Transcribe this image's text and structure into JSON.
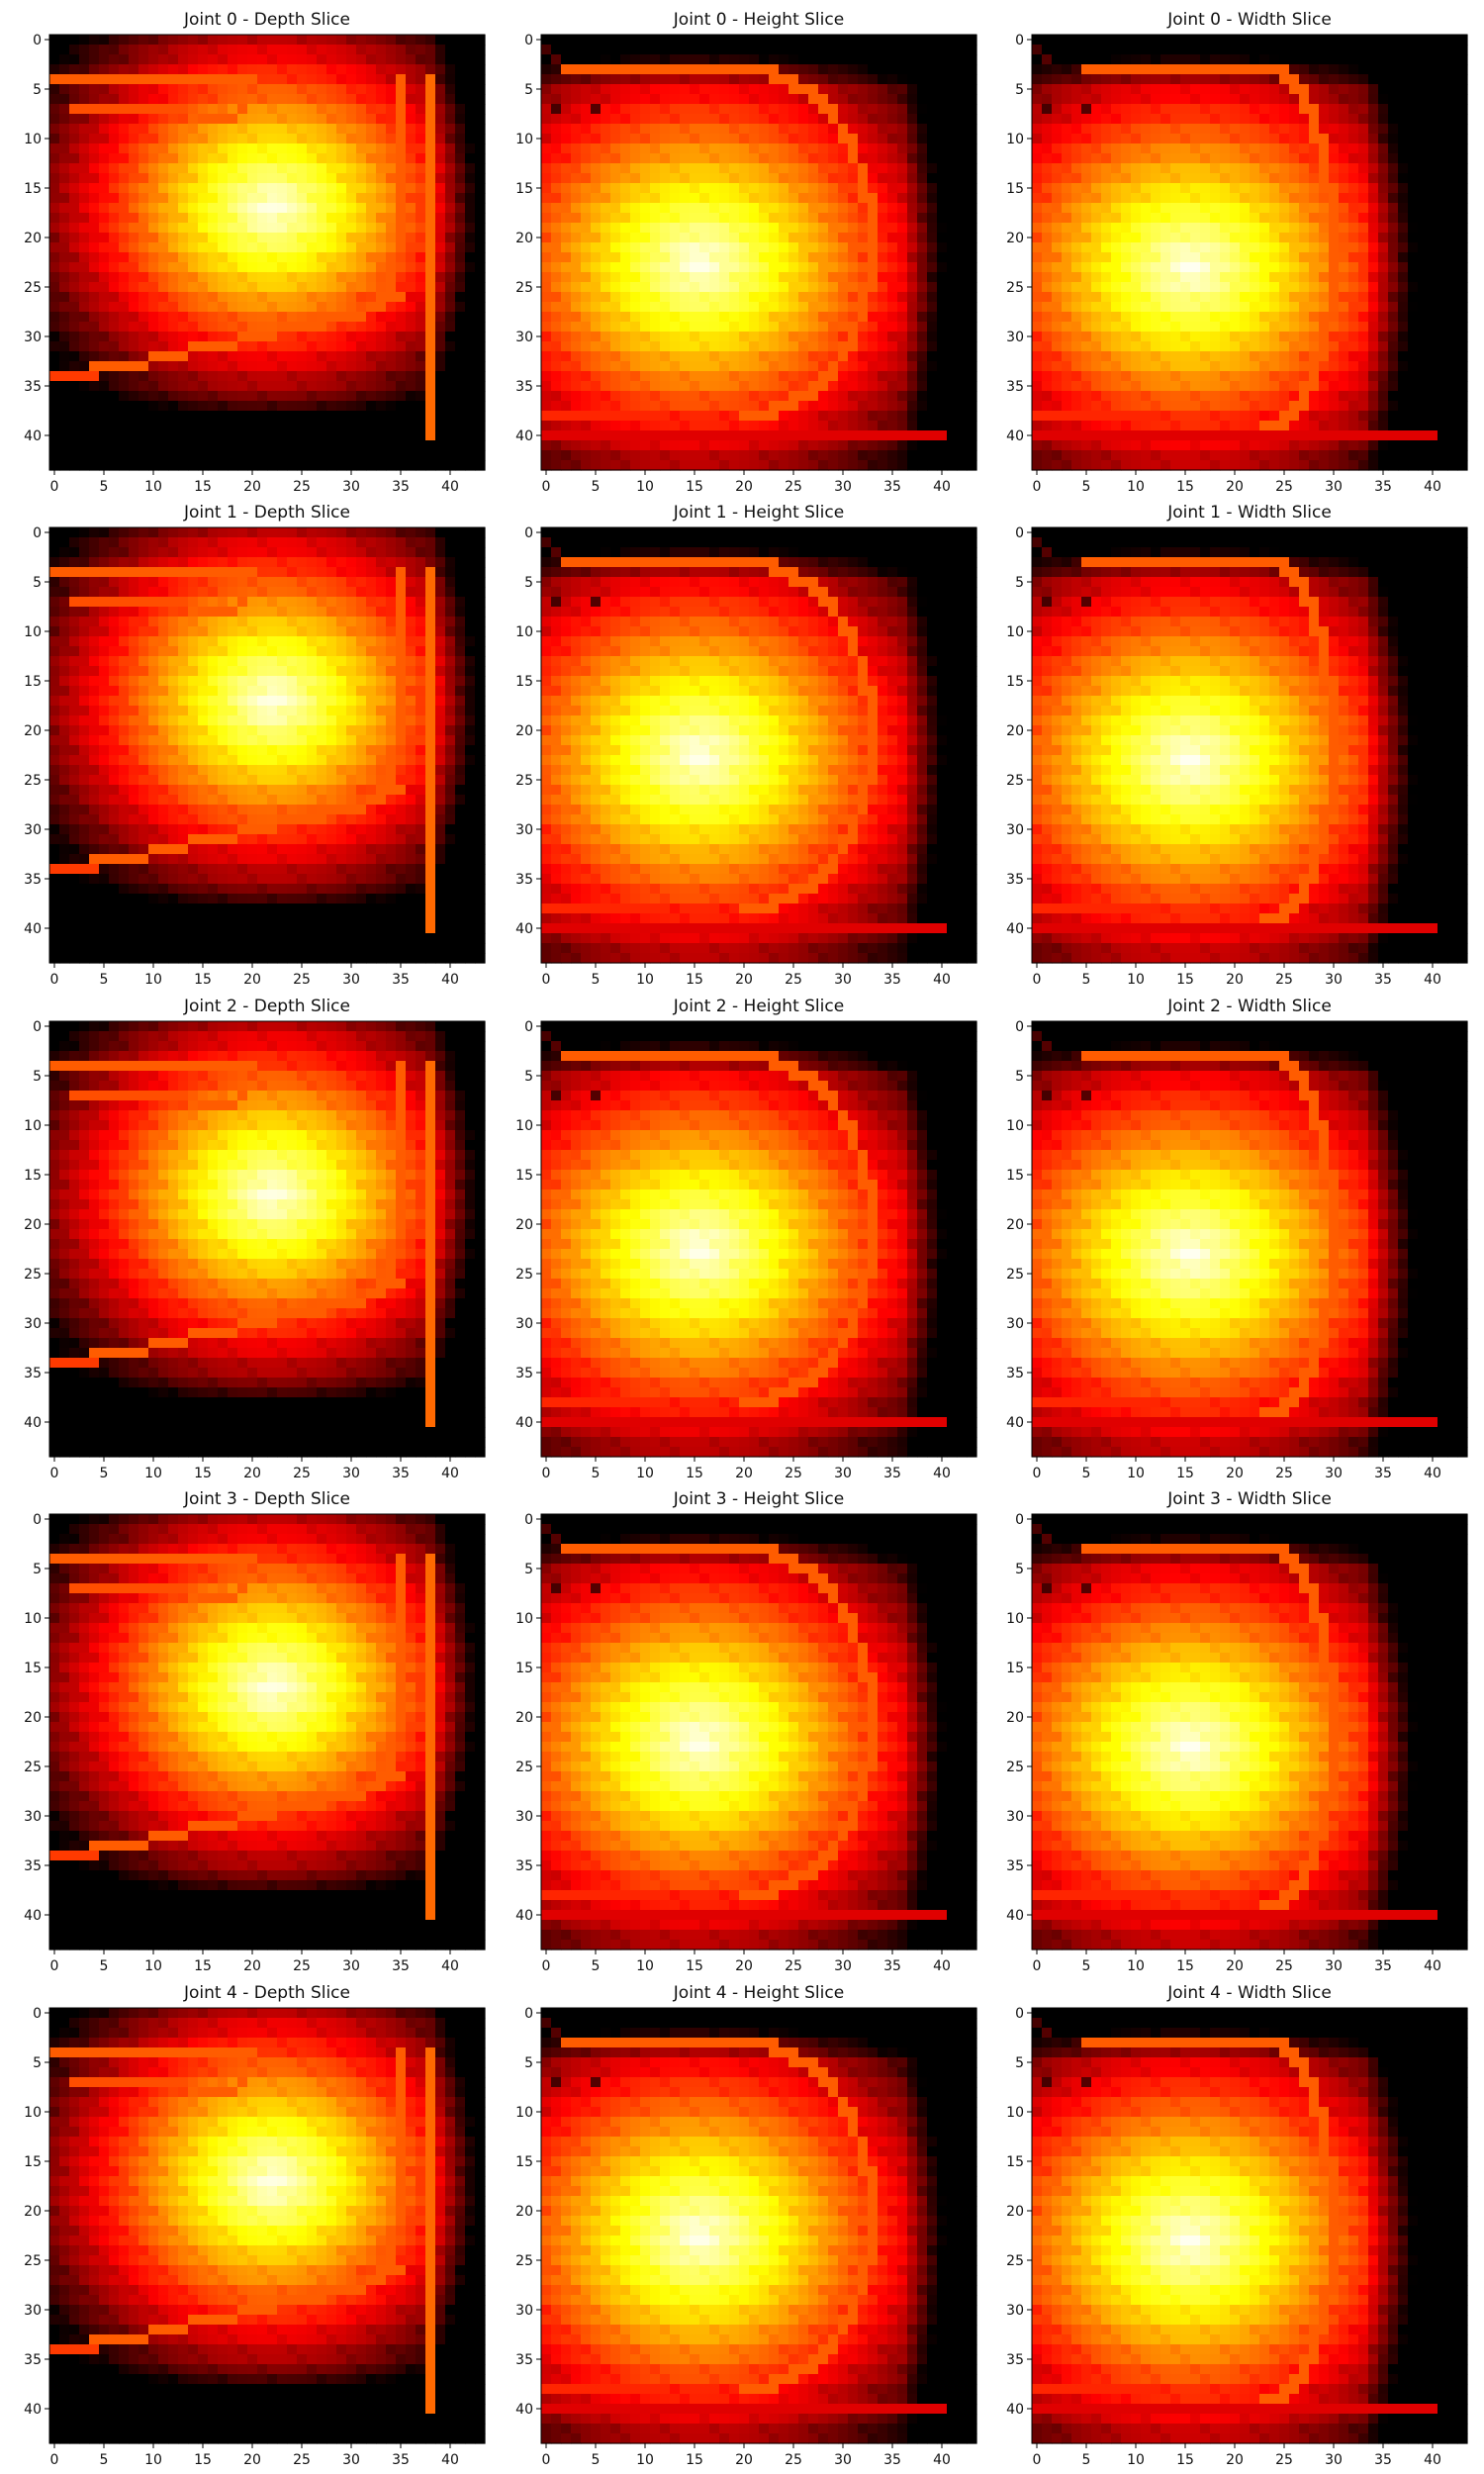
{
  "chart_data": [
    {
      "type": "heatmap",
      "title": "Joint 0 - Depth Slice",
      "x_ticks": [
        0,
        5,
        10,
        15,
        20,
        25,
        30,
        35,
        40
      ],
      "y_ticks": [
        0,
        5,
        10,
        15,
        20,
        25,
        30,
        35,
        40
      ],
      "xlim": [
        -0.5,
        43.5
      ],
      "ylim": [
        43.5,
        -0.5
      ],
      "colormap": "hot",
      "grid": false,
      "shape": [
        44,
        44
      ],
      "boundary": {
        "kind": "heart-loop",
        "y_top": 4,
        "y_bottom": 34,
        "x_left": 0,
        "x_right": 38
      }
    },
    {
      "type": "heatmap",
      "title": "Joint 0 - Height Slice",
      "x_ticks": [
        0,
        5,
        10,
        15,
        20,
        25,
        30,
        35,
        40
      ],
      "y_ticks": [
        0,
        5,
        10,
        15,
        20,
        25,
        30,
        35,
        40
      ],
      "xlim": [
        -0.5,
        43.5
      ],
      "ylim": [
        43.5,
        -0.5
      ],
      "colormap": "hot",
      "grid": false,
      "shape": [
        44,
        44
      ],
      "boundary": {
        "kind": "d-loop",
        "y_top": 3,
        "y_bottom": 38,
        "x_left": 2,
        "x_right": 33,
        "base_row": 40
      }
    },
    {
      "type": "heatmap",
      "title": "Joint 0 - Width Slice",
      "x_ticks": [
        0,
        5,
        10,
        15,
        20,
        25,
        30,
        35,
        40
      ],
      "y_ticks": [
        0,
        5,
        10,
        15,
        20,
        25,
        30,
        35,
        40
      ],
      "xlim": [
        -0.5,
        43.5
      ],
      "ylim": [
        43.5,
        -0.5
      ],
      "colormap": "hot",
      "grid": false,
      "shape": [
        44,
        44
      ],
      "boundary": {
        "kind": "d-loop",
        "y_top": 3,
        "y_bottom": 39,
        "x_left": 5,
        "x_right": 30,
        "base_row": 40
      }
    },
    {
      "type": "heatmap",
      "title": "Joint 1 - Depth Slice",
      "x_ticks": [
        0,
        5,
        10,
        15,
        20,
        25,
        30,
        35,
        40
      ],
      "y_ticks": [
        0,
        5,
        10,
        15,
        20,
        25,
        30,
        35,
        40
      ],
      "xlim": [
        -0.5,
        43.5
      ],
      "ylim": [
        43.5,
        -0.5
      ],
      "colormap": "hot",
      "grid": false,
      "shape": [
        44,
        44
      ],
      "boundary": {
        "kind": "heart-loop",
        "y_top": 4,
        "y_bottom": 34,
        "x_left": 0,
        "x_right": 38
      }
    },
    {
      "type": "heatmap",
      "title": "Joint 1 - Height Slice",
      "x_ticks": [
        0,
        5,
        10,
        15,
        20,
        25,
        30,
        35,
        40
      ],
      "y_ticks": [
        0,
        5,
        10,
        15,
        20,
        25,
        30,
        35,
        40
      ],
      "xlim": [
        -0.5,
        43.5
      ],
      "ylim": [
        43.5,
        -0.5
      ],
      "colormap": "hot",
      "grid": false,
      "shape": [
        44,
        44
      ],
      "boundary": {
        "kind": "d-loop",
        "y_top": 3,
        "y_bottom": 38,
        "x_left": 2,
        "x_right": 33,
        "base_row": 40
      }
    },
    {
      "type": "heatmap",
      "title": "Joint 1 - Width Slice",
      "x_ticks": [
        0,
        5,
        10,
        15,
        20,
        25,
        30,
        35,
        40
      ],
      "y_ticks": [
        0,
        5,
        10,
        15,
        20,
        25,
        30,
        35,
        40
      ],
      "xlim": [
        -0.5,
        43.5
      ],
      "ylim": [
        43.5,
        -0.5
      ],
      "colormap": "hot",
      "grid": false,
      "shape": [
        44,
        44
      ],
      "boundary": {
        "kind": "d-loop",
        "y_top": 3,
        "y_bottom": 39,
        "x_left": 5,
        "x_right": 30,
        "base_row": 40
      }
    },
    {
      "type": "heatmap",
      "title": "Joint 2 - Depth Slice",
      "x_ticks": [
        0,
        5,
        10,
        15,
        20,
        25,
        30,
        35,
        40
      ],
      "y_ticks": [
        0,
        5,
        10,
        15,
        20,
        25,
        30,
        35,
        40
      ],
      "xlim": [
        -0.5,
        43.5
      ],
      "ylim": [
        43.5,
        -0.5
      ],
      "colormap": "hot",
      "grid": false,
      "shape": [
        44,
        44
      ],
      "boundary": {
        "kind": "heart-loop",
        "y_top": 4,
        "y_bottom": 34,
        "x_left": 0,
        "x_right": 38
      }
    },
    {
      "type": "heatmap",
      "title": "Joint 2 - Height Slice",
      "x_ticks": [
        0,
        5,
        10,
        15,
        20,
        25,
        30,
        35,
        40
      ],
      "y_ticks": [
        0,
        5,
        10,
        15,
        20,
        25,
        30,
        35,
        40
      ],
      "xlim": [
        -0.5,
        43.5
      ],
      "ylim": [
        43.5,
        -0.5
      ],
      "colormap": "hot",
      "grid": false,
      "shape": [
        44,
        44
      ],
      "boundary": {
        "kind": "d-loop",
        "y_top": 3,
        "y_bottom": 38,
        "x_left": 2,
        "x_right": 33,
        "base_row": 40
      }
    },
    {
      "type": "heatmap",
      "title": "Joint 2 - Width Slice",
      "x_ticks": [
        0,
        5,
        10,
        15,
        20,
        25,
        30,
        35,
        40
      ],
      "y_ticks": [
        0,
        5,
        10,
        15,
        20,
        25,
        30,
        35,
        40
      ],
      "xlim": [
        -0.5,
        43.5
      ],
      "ylim": [
        43.5,
        -0.5
      ],
      "colormap": "hot",
      "grid": false,
      "shape": [
        44,
        44
      ],
      "boundary": {
        "kind": "d-loop",
        "y_top": 3,
        "y_bottom": 39,
        "x_left": 5,
        "x_right": 30,
        "base_row": 40
      }
    },
    {
      "type": "heatmap",
      "title": "Joint 3 - Depth Slice",
      "x_ticks": [
        0,
        5,
        10,
        15,
        20,
        25,
        30,
        35,
        40
      ],
      "y_ticks": [
        0,
        5,
        10,
        15,
        20,
        25,
        30,
        35,
        40
      ],
      "xlim": [
        -0.5,
        43.5
      ],
      "ylim": [
        43.5,
        -0.5
      ],
      "colormap": "hot",
      "grid": false,
      "shape": [
        44,
        44
      ],
      "boundary": {
        "kind": "heart-loop",
        "y_top": 4,
        "y_bottom": 34,
        "x_left": 0,
        "x_right": 38
      }
    },
    {
      "type": "heatmap",
      "title": "Joint 3 - Height Slice",
      "x_ticks": [
        0,
        5,
        10,
        15,
        20,
        25,
        30,
        35,
        40
      ],
      "y_ticks": [
        0,
        5,
        10,
        15,
        20,
        25,
        30,
        35,
        40
      ],
      "xlim": [
        -0.5,
        43.5
      ],
      "ylim": [
        43.5,
        -0.5
      ],
      "colormap": "hot",
      "grid": false,
      "shape": [
        44,
        44
      ],
      "boundary": {
        "kind": "d-loop",
        "y_top": 3,
        "y_bottom": 38,
        "x_left": 2,
        "x_right": 33,
        "base_row": 40
      }
    },
    {
      "type": "heatmap",
      "title": "Joint 3 - Width Slice",
      "x_ticks": [
        0,
        5,
        10,
        15,
        20,
        25,
        30,
        35,
        40
      ],
      "y_ticks": [
        0,
        5,
        10,
        15,
        20,
        25,
        30,
        35,
        40
      ],
      "xlim": [
        -0.5,
        43.5
      ],
      "ylim": [
        43.5,
        -0.5
      ],
      "colormap": "hot",
      "grid": false,
      "shape": [
        44,
        44
      ],
      "boundary": {
        "kind": "d-loop",
        "y_top": 3,
        "y_bottom": 39,
        "x_left": 5,
        "x_right": 30,
        "base_row": 40
      }
    },
    {
      "type": "heatmap",
      "title": "Joint 4 - Depth Slice",
      "x_ticks": [
        0,
        5,
        10,
        15,
        20,
        25,
        30,
        35,
        40
      ],
      "y_ticks": [
        0,
        5,
        10,
        15,
        20,
        25,
        30,
        35,
        40
      ],
      "xlim": [
        -0.5,
        43.5
      ],
      "ylim": [
        43.5,
        -0.5
      ],
      "colormap": "hot",
      "grid": false,
      "shape": [
        44,
        44
      ],
      "boundary": {
        "kind": "heart-loop",
        "y_top": 4,
        "y_bottom": 34,
        "x_left": 0,
        "x_right": 38
      }
    },
    {
      "type": "heatmap",
      "title": "Joint 4 - Height Slice",
      "x_ticks": [
        0,
        5,
        10,
        15,
        20,
        25,
        30,
        35,
        40
      ],
      "y_ticks": [
        0,
        5,
        10,
        15,
        20,
        25,
        30,
        35,
        40
      ],
      "xlim": [
        -0.5,
        43.5
      ],
      "ylim": [
        43.5,
        -0.5
      ],
      "colormap": "hot",
      "grid": false,
      "shape": [
        44,
        44
      ],
      "boundary": {
        "kind": "d-loop",
        "y_top": 3,
        "y_bottom": 38,
        "x_left": 2,
        "x_right": 33,
        "base_row": 40
      }
    },
    {
      "type": "heatmap",
      "title": "Joint 4 - Width Slice",
      "x_ticks": [
        0,
        5,
        10,
        15,
        20,
        25,
        30,
        35,
        40
      ],
      "y_ticks": [
        0,
        5,
        10,
        15,
        20,
        25,
        30,
        35,
        40
      ],
      "xlim": [
        -0.5,
        43.5
      ],
      "ylim": [
        43.5,
        -0.5
      ],
      "colormap": "hot",
      "grid": false,
      "shape": [
        44,
        44
      ],
      "boundary": {
        "kind": "d-loop",
        "y_top": 3,
        "y_bottom": 39,
        "x_left": 5,
        "x_right": 30,
        "base_row": 40
      }
    }
  ]
}
